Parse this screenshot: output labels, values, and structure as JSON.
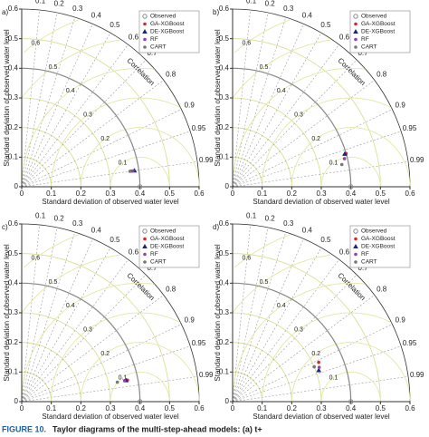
{
  "chart_data": [
    {
      "type": "taylor",
      "label": "a)",
      "xlabel": "Standard deviation of observed water level",
      "ylabel": "Standard deviation of observed water level",
      "corr_label": "Correlation",
      "xlim": [
        0,
        0.6
      ],
      "ylim": [
        0,
        0.6
      ],
      "xticks": [
        0,
        0.1,
        0.2,
        0.3,
        0.4,
        0.5,
        0.6
      ],
      "yticks": [
        0,
        0.1,
        0.2,
        0.3,
        0.4,
        0.5,
        0.6
      ],
      "corr_ticks": [
        0.1,
        0.2,
        0.3,
        0.4,
        0.5,
        0.6,
        0.7,
        0.8,
        0.9,
        0.95,
        0.99
      ],
      "rmsd_ticks": [
        0.1,
        0.2,
        0.3,
        0.4,
        0.5,
        0.6
      ],
      "series": [
        {
          "name": "Observed",
          "color": "#888888",
          "marker": "circle-open",
          "std": 0.4,
          "correlation": 1
        },
        {
          "name": "GA-XGBoost",
          "color": "#d62728",
          "marker": "circle",
          "std": 0.375,
          "correlation": 0.99
        },
        {
          "name": "DE-XGBoost",
          "color": "#1a237e",
          "marker": "triangle",
          "std": 0.385,
          "correlation": 0.99
        },
        {
          "name": "RF",
          "color": "#8e44ad",
          "marker": "circle",
          "std": 0.38,
          "correlation": 0.99
        },
        {
          "name": "CART",
          "color": "#777777",
          "marker": "circle",
          "std": 0.37,
          "correlation": 0.99
        }
      ]
    },
    {
      "type": "taylor",
      "label": "b)",
      "xlabel": "Standard deviation of observed water level",
      "ylabel": "Standard deviation of observed water level",
      "corr_label": "Correlation",
      "xlim": [
        0,
        0.6
      ],
      "ylim": [
        0,
        0.6
      ],
      "xticks": [
        0,
        0.1,
        0.2,
        0.3,
        0.4,
        0.5,
        0.6
      ],
      "yticks": [
        0,
        0.1,
        0.2,
        0.3,
        0.4,
        0.5,
        0.6
      ],
      "corr_ticks": [
        0.1,
        0.2,
        0.3,
        0.4,
        0.5,
        0.6,
        0.7,
        0.8,
        0.9,
        0.95,
        0.99
      ],
      "rmsd_ticks": [
        0.1,
        0.2,
        0.3,
        0.4,
        0.5,
        0.6
      ],
      "series": [
        {
          "name": "Observed",
          "color": "#888888",
          "marker": "circle-open",
          "std": 0.4,
          "correlation": 1
        },
        {
          "name": "GA-XGBoost",
          "color": "#d62728",
          "marker": "circle",
          "std": 0.4,
          "correlation": 0.96
        },
        {
          "name": "DE-XGBoost",
          "color": "#1a237e",
          "marker": "triangle",
          "std": 0.395,
          "correlation": 0.96
        },
        {
          "name": "RF",
          "color": "#8e44ad",
          "marker": "circle",
          "std": 0.39,
          "correlation": 0.97
        },
        {
          "name": "CART",
          "color": "#777777",
          "marker": "circle",
          "std": 0.377,
          "correlation": 0.98
        }
      ]
    },
    {
      "type": "taylor",
      "label": "c)",
      "xlabel": "Standard deviation of observed water level",
      "ylabel": "Standard deviation of observed water level",
      "corr_label": "Correlation",
      "xlim": [
        0,
        0.6
      ],
      "ylim": [
        0,
        0.6
      ],
      "xticks": [
        0,
        0.1,
        0.2,
        0.3,
        0.4,
        0.5,
        0.6
      ],
      "yticks": [
        0,
        0.1,
        0.2,
        0.3,
        0.4,
        0.5,
        0.6
      ],
      "corr_ticks": [
        0.1,
        0.2,
        0.3,
        0.4,
        0.5,
        0.6,
        0.7,
        0.8,
        0.9,
        0.95,
        0.99
      ],
      "rmsd_ticks": [
        0.1,
        0.2,
        0.3,
        0.4,
        0.5,
        0.6
      ],
      "series": [
        {
          "name": "Observed",
          "color": "#888888",
          "marker": "circle-open",
          "std": 0.4,
          "correlation": 1
        },
        {
          "name": "GA-XGBoost",
          "color": "#d62728",
          "marker": "circle",
          "std": 0.365,
          "correlation": 0.98
        },
        {
          "name": "DE-XGBoost",
          "color": "#1a237e",
          "marker": "triangle",
          "std": 0.36,
          "correlation": 0.98
        },
        {
          "name": "RF",
          "color": "#8e44ad",
          "marker": "circle",
          "std": 0.355,
          "correlation": 0.98
        },
        {
          "name": "CART",
          "color": "#777777",
          "marker": "circle",
          "std": 0.33,
          "correlation": 0.98
        }
      ]
    },
    {
      "type": "taylor",
      "label": "d)",
      "xlabel": "Standard deviation of observed water level",
      "ylabel": "Standard deviation of observed water level",
      "corr_label": "Correlation",
      "xlim": [
        0,
        0.6
      ],
      "ylim": [
        0,
        0.6
      ],
      "xticks": [
        0,
        0.1,
        0.2,
        0.3,
        0.4,
        0.5,
        0.6
      ],
      "yticks": [
        0,
        0.1,
        0.2,
        0.3,
        0.4,
        0.5,
        0.6
      ],
      "corr_ticks": [
        0.1,
        0.2,
        0.3,
        0.4,
        0.5,
        0.6,
        0.7,
        0.8,
        0.9,
        0.95,
        0.99
      ],
      "rmsd_ticks": [
        0.1,
        0.2,
        0.3,
        0.4,
        0.5,
        0.6
      ],
      "series": [
        {
          "name": "Observed",
          "color": "#888888",
          "marker": "circle-open",
          "std": 0.4,
          "correlation": 1
        },
        {
          "name": "GA-XGBoost",
          "color": "#d62728",
          "marker": "circle",
          "std": 0.32,
          "correlation": 0.91
        },
        {
          "name": "DE-XGBoost",
          "color": "#1a237e",
          "marker": "triangle",
          "std": 0.31,
          "correlation": 0.94
        },
        {
          "name": "RF",
          "color": "#8e44ad",
          "marker": "circle",
          "std": 0.315,
          "correlation": 0.93
        },
        {
          "name": "CART",
          "color": "#777777",
          "marker": "circle",
          "std": 0.3,
          "correlation": 0.92
        }
      ]
    }
  ],
  "caption": {
    "figure": "FIGURE 10.",
    "text": "Taylor diagrams of the multi-step-ahead models: (a) t+"
  }
}
